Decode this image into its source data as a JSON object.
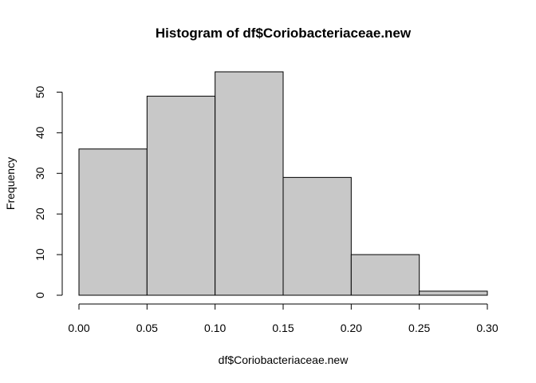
{
  "chart_data": {
    "type": "bar",
    "title": "Histogram of df$Coriobacteriaceae.new",
    "xlabel": "df$Coriobacteriaceae.new",
    "ylabel": "Frequency",
    "bins": [
      {
        "start": 0.0,
        "end": 0.05,
        "count": 36
      },
      {
        "start": 0.05,
        "end": 0.1,
        "count": 49
      },
      {
        "start": 0.1,
        "end": 0.15,
        "count": 55
      },
      {
        "start": 0.15,
        "end": 0.2,
        "count": 29
      },
      {
        "start": 0.2,
        "end": 0.25,
        "count": 10
      },
      {
        "start": 0.25,
        "end": 0.3,
        "count": 1
      }
    ],
    "xlim": [
      0,
      0.3
    ],
    "ylim": [
      0,
      55
    ],
    "x_ticks": [
      "0.00",
      "0.05",
      "0.10",
      "0.15",
      "0.20",
      "0.25",
      "0.30"
    ],
    "y_ticks": [
      "0",
      "10",
      "20",
      "30",
      "40",
      "50"
    ],
    "bar_color": "#c8c8c8",
    "grid": false
  }
}
